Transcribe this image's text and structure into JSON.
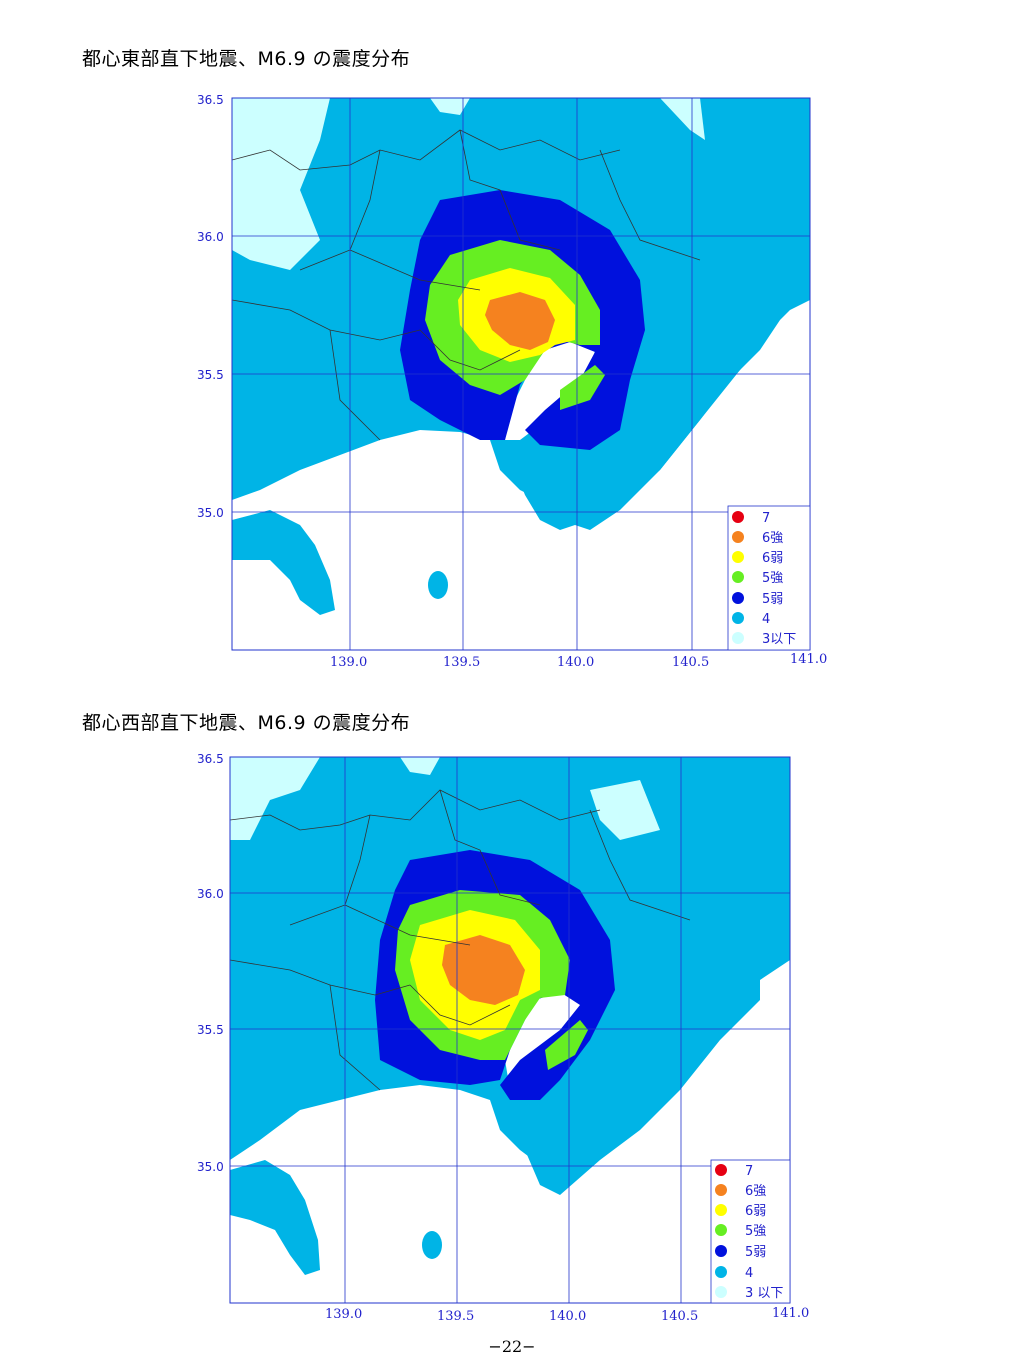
{
  "colors": {
    "intensity_7": "#e60012",
    "intensity_6_strong": "#f5821f",
    "intensity_6_weak": "#ffff00",
    "intensity_5_strong": "#66ee22",
    "intensity_5_weak": "#0011dd",
    "intensity_4": "#00b4e6",
    "intensity_3_or_less": "#ccffff",
    "sea": "#ffffff",
    "grid": "#2233cc",
    "axis_label": "#2222cc"
  },
  "maps": [
    {
      "title": "都心東部直下地震、M6.9 の震度分布",
      "y_ticks": [
        "36.5",
        "36.0",
        "35.5",
        "35.0"
      ],
      "x_ticks": [
        "139.0",
        "139.5",
        "140.0",
        "140.5",
        "141.0"
      ],
      "legend": [
        {
          "label": "7",
          "color": "#e60012"
        },
        {
          "label": "6強",
          "color": "#f5821f"
        },
        {
          "label": "6弱",
          "color": "#ffff00"
        },
        {
          "label": "5強",
          "color": "#66ee22"
        },
        {
          "label": "5弱",
          "color": "#0011dd"
        },
        {
          "label": "4",
          "color": "#00b4e6"
        },
        {
          "label": "3以下",
          "color": "#ccffff"
        }
      ]
    },
    {
      "title": "都心西部直下地震、M6.9 の震度分布",
      "y_ticks": [
        "36.5",
        "36.0",
        "35.5",
        "35.0"
      ],
      "x_ticks": [
        "139.0",
        "139.5",
        "140.0",
        "140.5",
        "141.0"
      ],
      "legend": [
        {
          "label": "7",
          "color": "#e60012"
        },
        {
          "label": "6強",
          "color": "#f5821f"
        },
        {
          "label": "6弱",
          "color": "#ffff00"
        },
        {
          "label": "5強",
          "color": "#66ee22"
        },
        {
          "label": "5弱",
          "color": "#0011dd"
        },
        {
          "label": "4",
          "color": "#00b4e6"
        },
        {
          "label": "3 以下",
          "color": "#ccffff"
        }
      ]
    }
  ],
  "footer": {
    "page_number": "−22−"
  }
}
